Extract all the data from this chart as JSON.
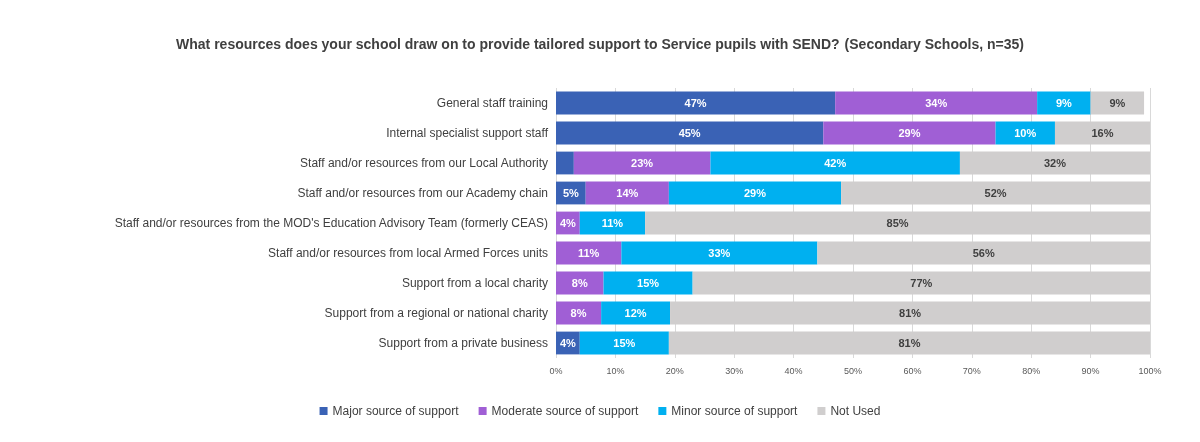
{
  "chart_data": {
    "type": "bar",
    "orientation": "horizontal",
    "stacked": true,
    "title": "What resources does your school draw on to provide tailored support to Service pupils with SEND?",
    "subtitle": "(Secondary Schools, n=35)",
    "categories": [
      "General staff training",
      "Internal specialist support staff",
      "Staff and/or resources from our Local Authority",
      "Staff and/or resources from our Academy chain",
      "Staff and/or resources from the MOD's Education Advisory Team (formerly CEAS)",
      "Staff and/or resources from local Armed Forces units",
      "Support from a local charity",
      "Support from a regional or national charity",
      "Support from a private business"
    ],
    "series": [
      {
        "name": "Major source of support",
        "color": "#3a62b5",
        "values": [
          47,
          45,
          3,
          5,
          null,
          null,
          null,
          null,
          4
        ],
        "value_labels": [
          "47%",
          "45%",
          null,
          "5%",
          null,
          null,
          null,
          null,
          "4%"
        ]
      },
      {
        "name": "Moderate source of support",
        "color": "#a05fd5",
        "values": [
          34,
          29,
          23,
          14,
          4,
          11,
          8,
          7.6,
          null
        ],
        "value_labels": [
          "34%",
          "29%",
          "23%",
          "14%",
          "4%",
          "11%",
          "8%",
          "8%",
          null
        ]
      },
      {
        "name": "Minor source of support",
        "color": "#00b0f0",
        "values": [
          9,
          10,
          42,
          29,
          11,
          33,
          15,
          11.6,
          15
        ],
        "value_labels": [
          "9%",
          "10%",
          "42%",
          "29%",
          "11%",
          "33%",
          "15%",
          "12%",
          "15%"
        ]
      },
      {
        "name": "Not Used",
        "color": "#d0cece",
        "values": [
          9,
          16,
          32,
          52,
          85,
          56,
          77,
          80.8,
          81
        ],
        "value_labels": [
          "9%",
          "16%",
          "32%",
          "52%",
          "85%",
          "56%",
          "77%",
          "81%",
          "81%"
        ]
      }
    ],
    "xlim": [
      0,
      100
    ],
    "xticks": [
      {
        "value": 0,
        "label": "0%"
      },
      {
        "value": 10,
        "label": "10%"
      },
      {
        "value": 20,
        "label": "20%"
      },
      {
        "value": 30,
        "label": "30%"
      },
      {
        "value": 40,
        "label": "40%"
      },
      {
        "value": 50,
        "label": "50%"
      },
      {
        "value": 60,
        "label": "60%"
      },
      {
        "value": 70,
        "label": "70%"
      },
      {
        "value": 80,
        "label": "80%"
      },
      {
        "value": 90,
        "label": "90%"
      },
      {
        "value": 100,
        "label": "100%"
      }
    ],
    "grid": "x",
    "legend": "bottom"
  }
}
